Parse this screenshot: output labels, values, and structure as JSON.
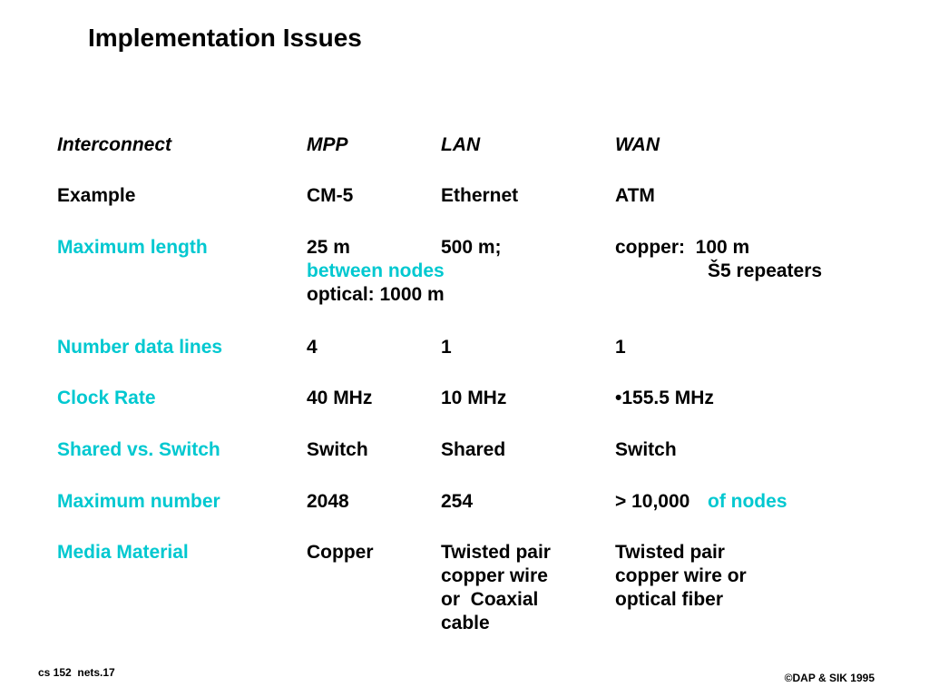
{
  "title": "Implementation Issues",
  "table": {
    "header": [
      "Interconnect",
      "MPP",
      "LAN",
      "WAN"
    ],
    "rows": [
      [
        "Example",
        [
          "CM-5"
        ],
        [
          "Ethernet"
        ],
        [
          "ATM"
        ]
      ],
      [
        "Maximum length",
        [
          "25 m"
        ],
        [
          "500 m;"
        ],
        [
          "copper:  100 m"
        ]
      ],
      [
        "Number data lines",
        [
          "4"
        ],
        [
          "1"
        ],
        [
          "1"
        ]
      ],
      [
        "Clock Rate",
        [
          "40 MHz"
        ],
        [
          "10 MHz"
        ],
        [
          "•155.5 MHz"
        ]
      ],
      [
        "Shared vs. Switch",
        [
          "Switch"
        ],
        [
          "Shared"
        ],
        [
          "Switch"
        ]
      ],
      [
        "Maximum number",
        [
          "2048"
        ],
        [
          "254"
        ],
        [
          "> 10,000"
        ]
      ],
      [
        "Media Material",
        [
          "Copper"
        ],
        [
          "Twisted pair",
          "copper wire",
          "or  Coaxial",
          "cable"
        ],
        [
          "Twisted pair",
          "copper wire or",
          "optical fiber"
        ]
      ]
    ]
  },
  "notes": [
    "between nodes",
    "Š5 repeaters",
    "optical: 1000 m",
    "of nodes"
  ],
  "footer": {
    "left": "cs 152  nets.17",
    "right": "©DAP & SIK 1995"
  }
}
